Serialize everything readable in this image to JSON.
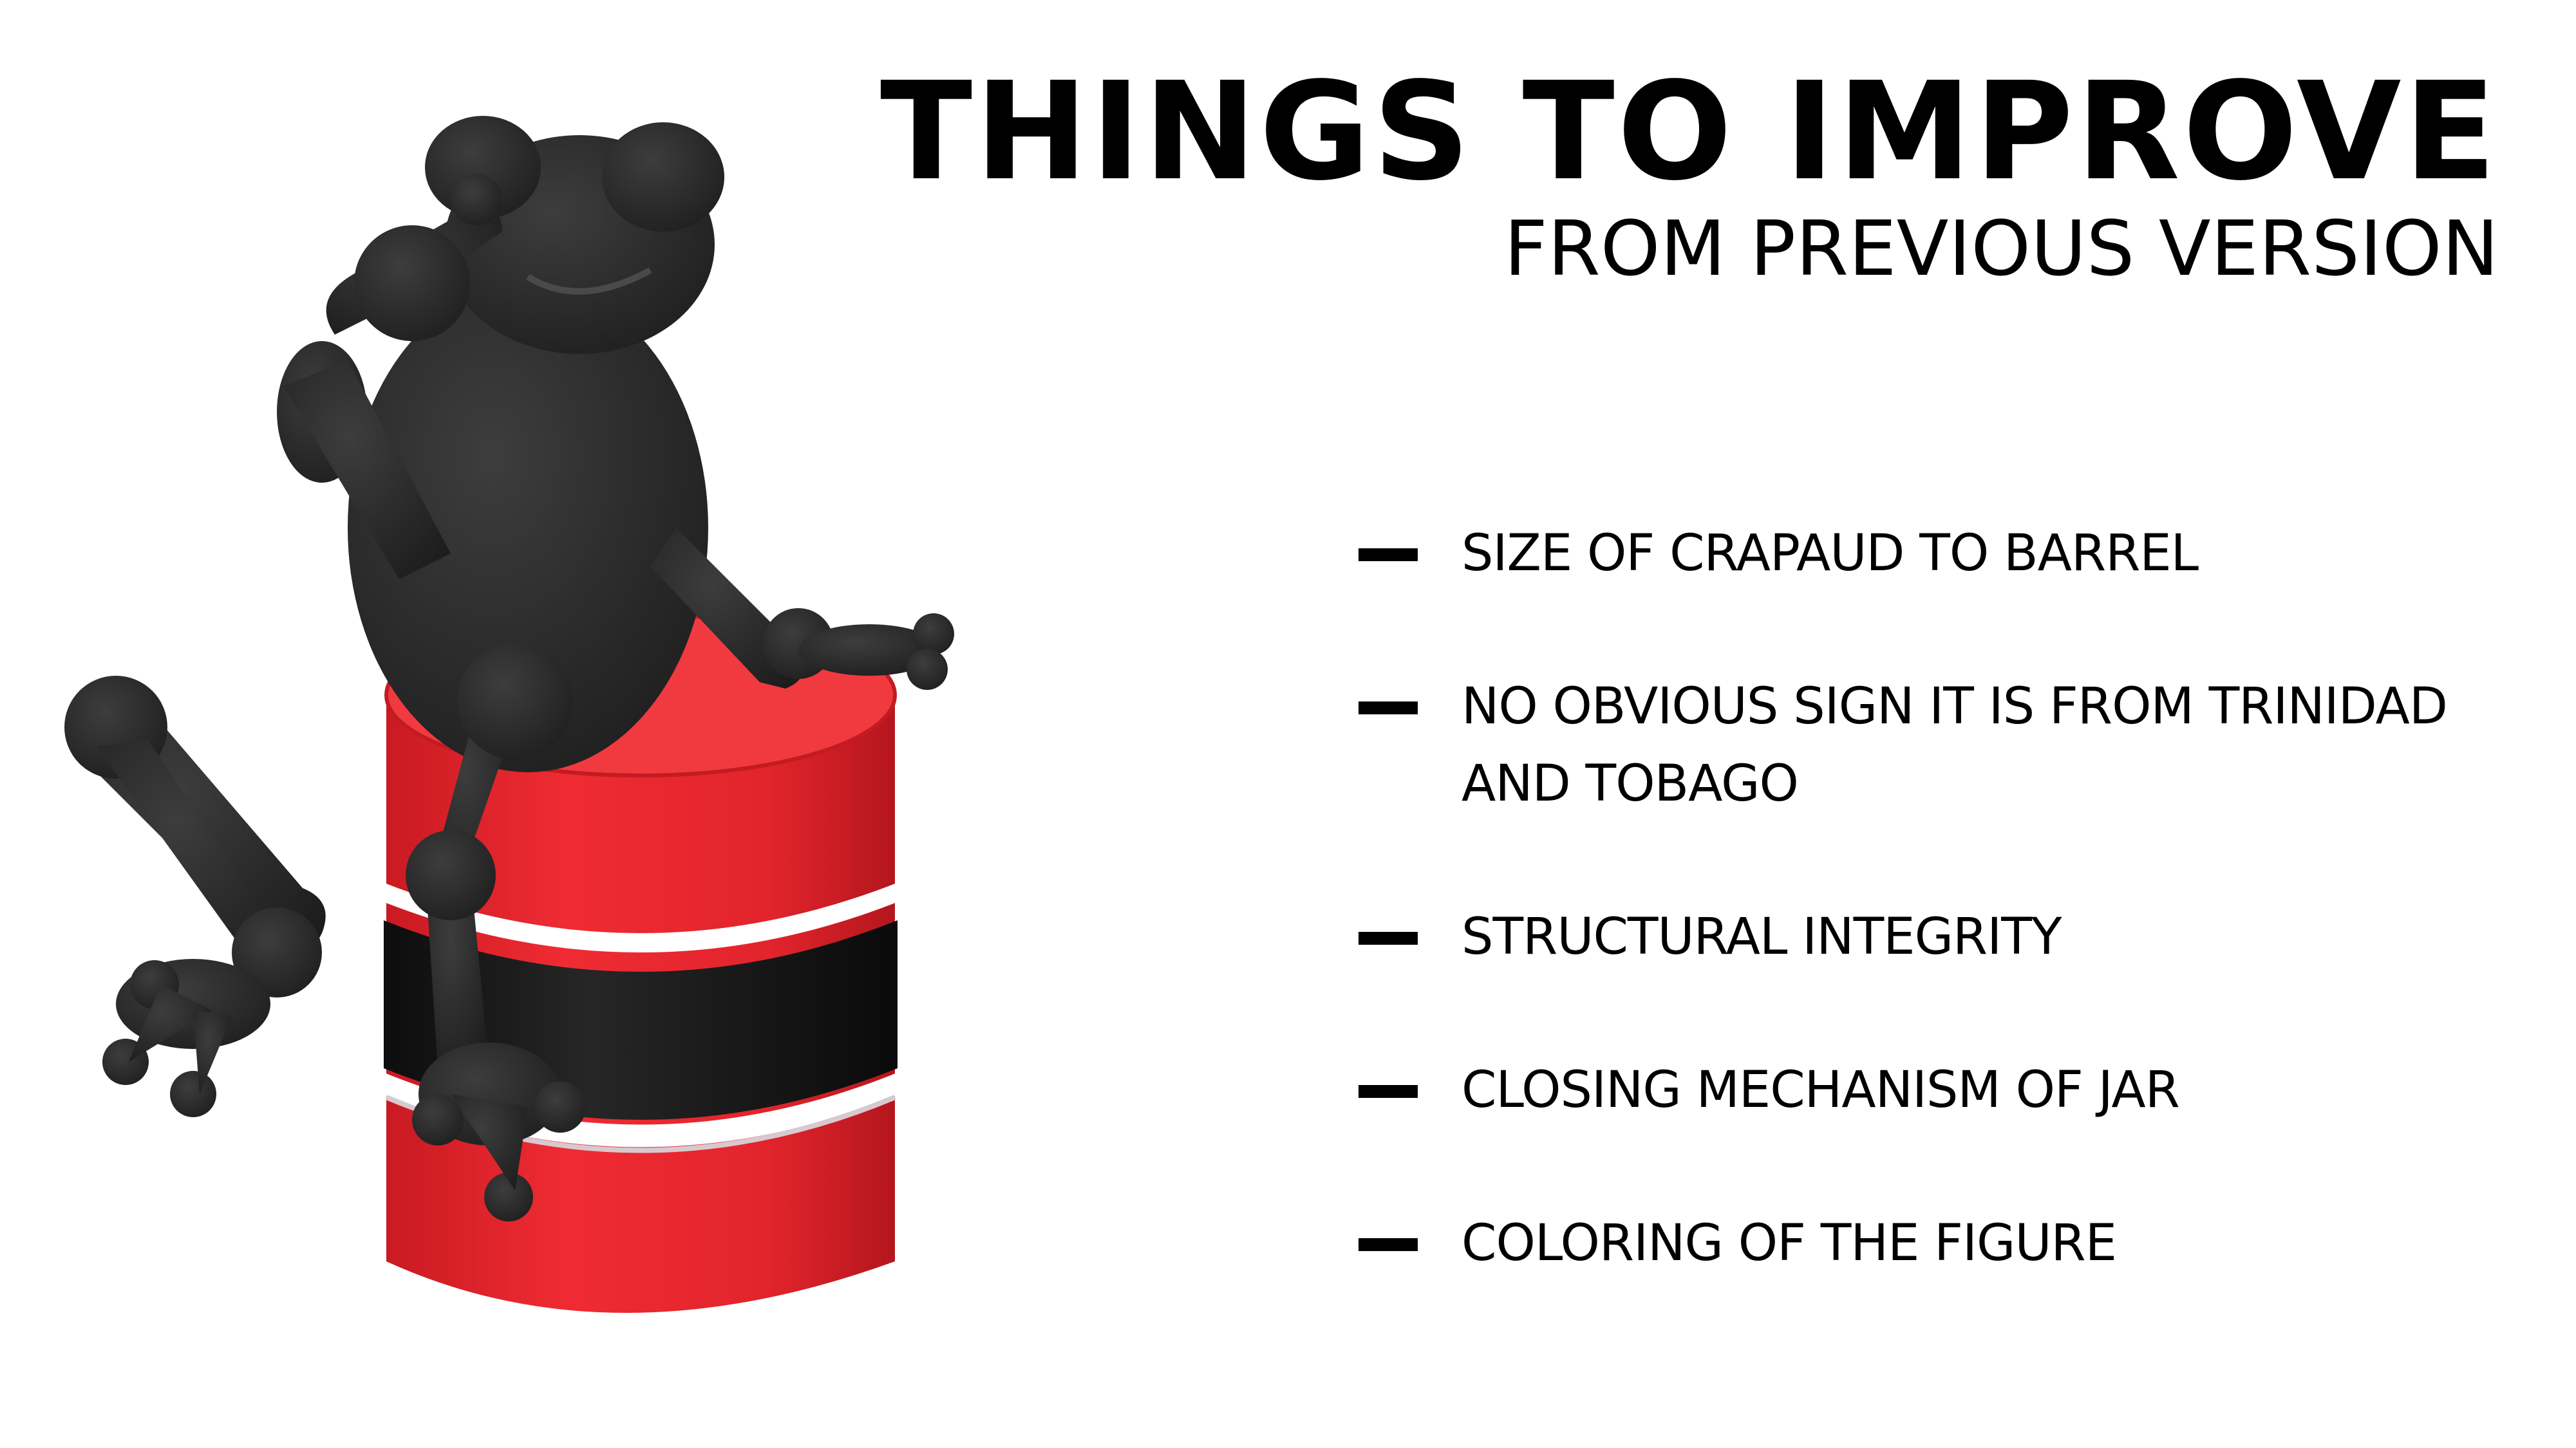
{
  "heading": {
    "title": "THINGS TO IMPROVE",
    "subtitle": "FROM PREVIOUS VERSION"
  },
  "improvements": [
    {
      "text": "SIZE OF CRAPAUD TO BARREL"
    },
    {
      "text": "NO OBVIOUS SIGN IT IS FROM TRINIDAD AND TOBAGO"
    },
    {
      "text": "STRUCTURAL INTEGRITY"
    },
    {
      "text": "CLOSING MECHANISM OF JAR"
    },
    {
      "text": "COLORING OF THE FIGURE"
    }
  ],
  "colors": {
    "barrel_red": "#e8242c",
    "barrel_stripe_white": "#ffffff",
    "barrel_stripe_black": "#151515",
    "frog": "#2b2b2b",
    "text": "#000000"
  },
  "icons": {
    "figure": "frog-on-barrel-figure",
    "bullet": "dash-bullet-icon"
  }
}
